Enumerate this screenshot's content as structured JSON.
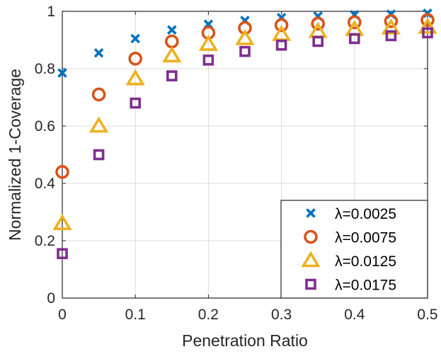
{
  "chart_data": {
    "type": "scatter",
    "title": "",
    "xlabel": "Penetration Ratio",
    "ylabel": "Normalized 1-Coverage",
    "xlim": [
      0,
      0.5
    ],
    "ylim": [
      0,
      1
    ],
    "grid": true,
    "legend_position": "bottom-right",
    "x_ticks": [
      0,
      0.1,
      0.2,
      0.3,
      0.4,
      0.5
    ],
    "x_tick_labels": [
      "0",
      "0.1",
      "0.2",
      "0.3",
      "0.4",
      "0.5"
    ],
    "y_ticks": [
      0,
      0.2,
      0.4,
      0.6,
      0.8,
      1
    ],
    "y_tick_labels": [
      "0",
      "0.2",
      "0.4",
      "0.6",
      "0.8",
      "1"
    ],
    "x": [
      0,
      0.05,
      0.1,
      0.15,
      0.2,
      0.25,
      0.3,
      0.35,
      0.4,
      0.45,
      0.5
    ],
    "series": [
      {
        "name": "λ=0.0025",
        "marker": "x",
        "color": "#0072BD",
        "values": [
          0.785,
          0.855,
          0.905,
          0.935,
          0.955,
          0.968,
          0.978,
          0.983,
          0.988,
          0.99,
          0.993
        ]
      },
      {
        "name": "λ=0.0075",
        "marker": "circle",
        "color": "#D95319",
        "values": [
          0.44,
          0.71,
          0.835,
          0.895,
          0.925,
          0.942,
          0.952,
          0.957,
          0.962,
          0.966,
          0.97
        ]
      },
      {
        "name": "λ=0.0125",
        "marker": "triangle",
        "color": "#EDB120",
        "values": [
          0.26,
          0.6,
          0.765,
          0.845,
          0.885,
          0.905,
          0.92,
          0.93,
          0.937,
          0.942,
          0.945
        ]
      },
      {
        "name": "λ=0.0175",
        "marker": "square",
        "color": "#7E2F8E",
        "values": [
          0.155,
          0.5,
          0.68,
          0.775,
          0.83,
          0.86,
          0.882,
          0.895,
          0.905,
          0.915,
          0.925
        ]
      }
    ]
  }
}
